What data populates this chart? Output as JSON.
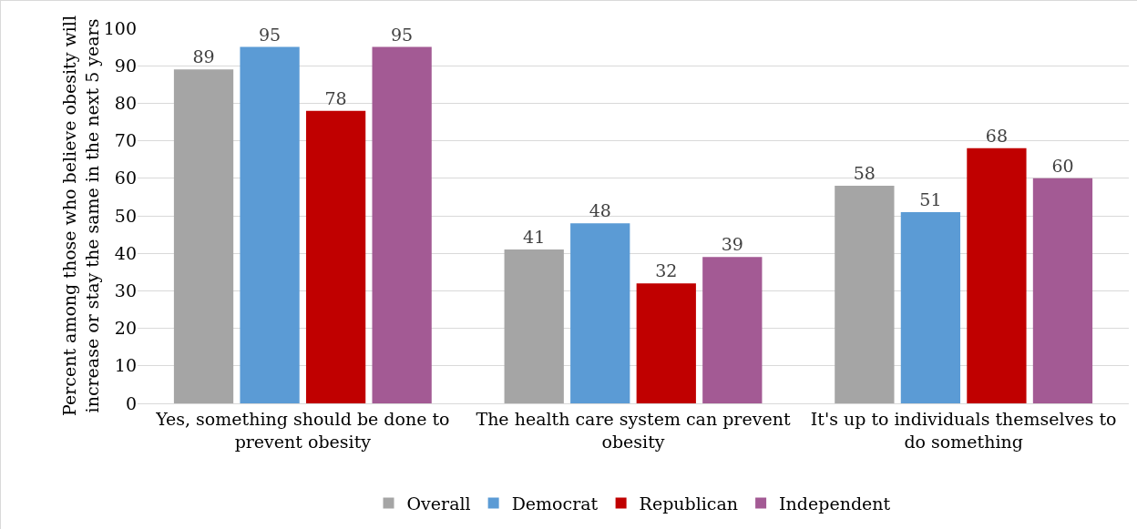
{
  "chart_data": {
    "type": "bar",
    "ylabel": "Percent among those who believe obesity will increase or stay the same in the next 5 years",
    "categories": [
      "Yes, something should be done to prevent obesity",
      "The health care system can prevent obesity",
      "It's up to individuals themselves to do something"
    ],
    "series": [
      {
        "name": "Overall",
        "color": "#a5a5a5",
        "values": [
          89,
          41,
          58
        ]
      },
      {
        "name": "Democrat",
        "color": "#5b9bd5",
        "values": [
          95,
          48,
          51
        ]
      },
      {
        "name": "Republican",
        "color": "#c00000",
        "values": [
          78,
          32,
          68
        ]
      },
      {
        "name": "Independent",
        "color": "#a35a94",
        "values": [
          95,
          39,
          60
        ]
      }
    ],
    "ylim": [
      0,
      100
    ],
    "yticks": [
      0,
      10,
      20,
      30,
      40,
      50,
      60,
      70,
      80,
      90,
      100
    ],
    "grid": "y",
    "legend": "bottom",
    "data_labels": true
  }
}
